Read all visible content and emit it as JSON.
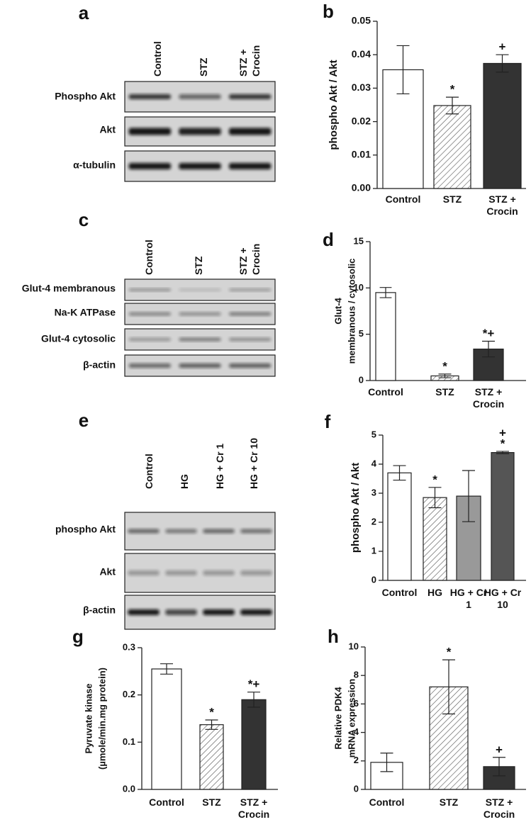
{
  "blots": [
    {
      "label": "a",
      "lanes": [
        "Control",
        "STZ",
        "STZ + Crocin"
      ],
      "rows": [
        "Phospho Akt",
        "Akt",
        "α-tubulin"
      ]
    },
    {
      "label": "c",
      "lanes": [
        "Control",
        "STZ",
        "STZ + Crocin"
      ],
      "rows": [
        "Glut-4 membranous",
        "Na-K ATPase",
        "Glut-4 cytosolic",
        "β-actin"
      ]
    },
    {
      "label": "e",
      "lanes": [
        "Control",
        "HG",
        "HG + Cr 1",
        "HG + Cr 10"
      ],
      "rows": [
        "phospho Akt",
        "Akt",
        "β-actin"
      ]
    }
  ],
  "chart_data": [
    {
      "type": "bar",
      "label": "b",
      "ylabel": [
        "phospho Akt / Akt"
      ],
      "categories": [
        "Control",
        "STZ",
        "STZ + Crocin"
      ],
      "values": [
        0.0355,
        0.0248,
        0.0374
      ],
      "errors": [
        0.0072,
        0.0025,
        0.0026
      ],
      "colors": [
        "#ffffff",
        "#ffffff",
        "#333333"
      ],
      "hatched": [
        false,
        true,
        false
      ],
      "ylim": [
        0,
        0.05
      ],
      "yticks": [
        {
          "value": 0,
          "label": "0.00"
        },
        0.01,
        0.02,
        0.03,
        0.04,
        0.05
      ],
      "annotations": [
        {
          "category": "STZ",
          "text": "*"
        },
        {
          "category": "STZ + Crocin",
          "text": "+"
        }
      ]
    },
    {
      "type": "bar",
      "label": "d",
      "ylabel": [
        "Glut-4",
        "membranous / cytosolic"
      ],
      "categories": [
        "Control",
        "STZ",
        "STZ + Crocin"
      ],
      "values": [
        9.5,
        0.5,
        3.4
      ],
      "errors": [
        0.55,
        0.2,
        0.85
      ],
      "colors": [
        "#ffffff",
        "#ffffff",
        "#333333"
      ],
      "hatched": [
        false,
        true,
        false
      ],
      "ylim": [
        0,
        15
      ],
      "yticks": [
        0,
        5,
        10,
        15
      ],
      "annotations": [
        {
          "category": "STZ",
          "text": "*"
        },
        {
          "category": "STZ + Crocin",
          "text": "*+"
        }
      ]
    },
    {
      "type": "bar",
      "label": "f",
      "ylabel": [
        "phospho Akt / Akt"
      ],
      "categories": [
        "Control",
        "HG",
        "HG + Cr 1",
        "HG + Cr 10"
      ],
      "values": [
        3.7,
        2.85,
        2.9,
        4.4
      ],
      "errors": [
        0.25,
        0.35,
        0.88,
        0.04
      ],
      "colors": [
        "#ffffff",
        "#ffffff",
        "#999999",
        "#555555"
      ],
      "hatched": [
        false,
        true,
        false,
        false
      ],
      "ylim": [
        0,
        5
      ],
      "yticks": [
        0,
        1,
        2,
        3,
        4,
        5
      ],
      "annotations": [
        {
          "category": "HG",
          "text": "*"
        },
        {
          "category": "HG + Cr 10",
          "text": "*"
        },
        {
          "category": "HG + Cr 10",
          "text": "+"
        }
      ]
    },
    {
      "type": "bar",
      "label": "g",
      "ylabel": [
        "Pyruvate kinase",
        "(µmole/min.mg protein)"
      ],
      "categories": [
        "Control",
        "STZ",
        "STZ + Crocin"
      ],
      "values": [
        0.255,
        0.137,
        0.19
      ],
      "errors": [
        0.011,
        0.01,
        0.016
      ],
      "colors": [
        "#ffffff",
        "#ffffff",
        "#333333"
      ],
      "hatched": [
        false,
        true,
        false
      ],
      "ylim": [
        0,
        0.3
      ],
      "yticks": [
        {
          "value": 0,
          "label": "0.0"
        },
        0.1,
        0.2,
        0.3
      ],
      "annotations": [
        {
          "category": "STZ",
          "text": "*"
        },
        {
          "category": "STZ + Crocin",
          "text": "*+"
        }
      ]
    },
    {
      "type": "bar",
      "label": "h",
      "ylabel": [
        "Relative PDK4",
        "mRNA expression"
      ],
      "categories": [
        "Control",
        "STZ",
        "STZ + Crocin"
      ],
      "values": [
        1.9,
        7.2,
        1.6
      ],
      "errors": [
        0.65,
        1.9,
        0.65
      ],
      "colors": [
        "#ffffff",
        "#ffffff",
        "#333333"
      ],
      "hatched": [
        false,
        true,
        false
      ],
      "ylim": [
        0,
        10
      ],
      "yticks": [
        0,
        2,
        4,
        6,
        8,
        10
      ],
      "annotations": [
        {
          "category": "STZ",
          "text": "*"
        },
        {
          "category": "STZ + Crocin",
          "text": "+"
        }
      ]
    }
  ]
}
